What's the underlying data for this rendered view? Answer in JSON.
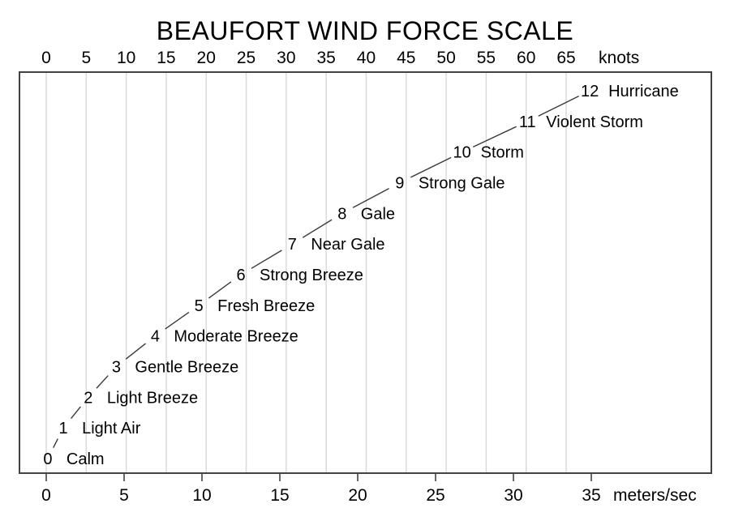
{
  "chart_data": {
    "type": "line",
    "title": "BEAUFORT WIND FORCE SCALE",
    "top_axis": {
      "unit_label": "knots",
      "ticks": [
        0,
        5,
        10,
        15,
        20,
        25,
        30,
        35,
        40,
        45,
        50,
        55,
        60,
        65
      ]
    },
    "bottom_axis": {
      "unit_label": "meters/sec",
      "ticks": [
        0,
        5,
        10,
        15,
        20,
        25,
        30,
        35
      ]
    },
    "grid": {
      "vertical_gridlines_at_knots_ticks": true,
      "horizontal_gridlines": false
    },
    "y_encoding": "Beaufort force number (0-12), no labeled y axis",
    "line_style": "thin dark segments with gaps around point labels",
    "points": [
      {
        "force": 0,
        "name": "Calm",
        "speed_ms": 0.1
      },
      {
        "force": 1,
        "name": "Light Air",
        "speed_ms": 1.1
      },
      {
        "force": 2,
        "name": "Light Breeze",
        "speed_ms": 2.7
      },
      {
        "force": 3,
        "name": "Gentle Breeze",
        "speed_ms": 4.5
      },
      {
        "force": 4,
        "name": "Moderate Breeze",
        "speed_ms": 7.0
      },
      {
        "force": 5,
        "name": "Fresh Breeze",
        "speed_ms": 9.8
      },
      {
        "force": 6,
        "name": "Strong Breeze",
        "speed_ms": 12.5
      },
      {
        "force": 7,
        "name": "Near Gale",
        "speed_ms": 15.8
      },
      {
        "force": 8,
        "name": "Gale",
        "speed_ms": 19.0
      },
      {
        "force": 9,
        "name": "Strong Gale",
        "speed_ms": 22.7
      },
      {
        "force": 10,
        "name": "Storm",
        "speed_ms": 26.7
      },
      {
        "force": 11,
        "name": "Violent Storm",
        "speed_ms": 30.9
      },
      {
        "force": 12,
        "name": "Hurricane",
        "speed_ms": 34.9
      }
    ],
    "xlim_ms": [
      0,
      42.7
    ],
    "ylim_force": [
      -0.5,
      12.6
    ]
  },
  "colors": {
    "background": "#ffffff",
    "grid": "#d8d8d8",
    "box_border": "#424242",
    "curve": "#3a3a3a",
    "text": "#000000"
  }
}
